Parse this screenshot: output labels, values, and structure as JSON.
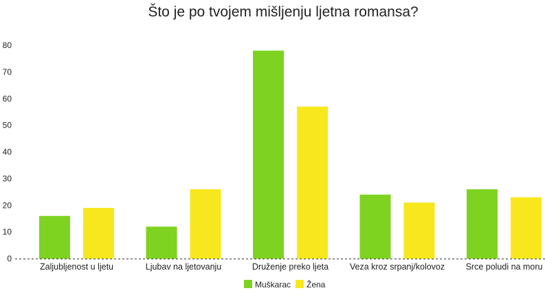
{
  "chart_data": {
    "type": "bar",
    "title": "Što je po tvojem mišljenju ljetna romansa?",
    "xlabel": "",
    "ylabel": "",
    "categories": [
      "Zaljubljenost u ljetu",
      "Ljubav na ljetovanju",
      "Druženje preko ljeta",
      "Veza kroz srpanj/kolovoz",
      "Srce poludi na moru"
    ],
    "series": [
      {
        "name": "Muškarac",
        "color": "#7ed321",
        "values": [
          16,
          12,
          78,
          24,
          26
        ]
      },
      {
        "name": "Žena",
        "color": "#f8e71c",
        "values": [
          19,
          26,
          57,
          21,
          23
        ]
      }
    ],
    "ylim": [
      0,
      80
    ],
    "yticks": [
      "0",
      "10",
      "20",
      "30",
      "40",
      "50",
      "60",
      "70",
      "80"
    ],
    "grid": false,
    "legend_position": "bottom-center"
  }
}
